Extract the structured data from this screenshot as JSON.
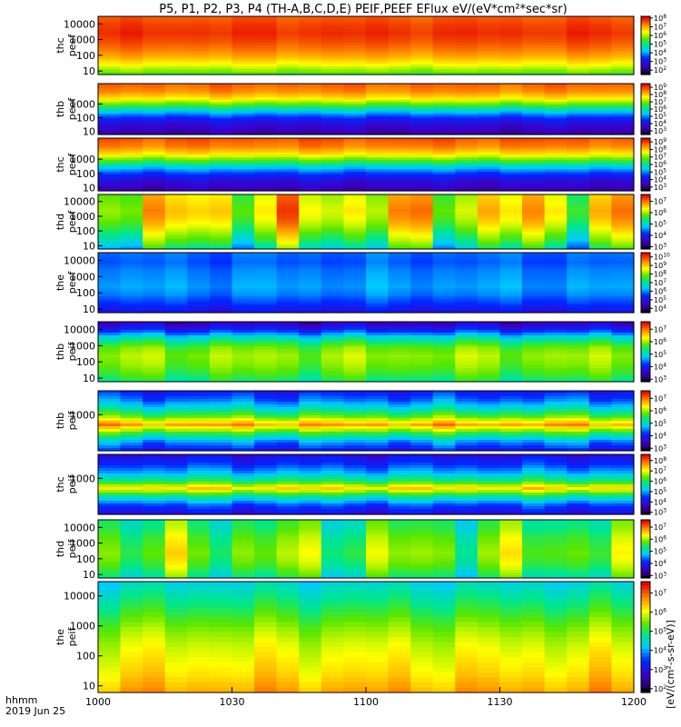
{
  "title": "P5, P1, P2, P3, P4 (TH-A,B,C,D,E) PEIF,PEEF EFlux eV/(eV*cm²*sec*sr)",
  "colorbar_label": "[eV/(cm²-s-sr-eV)]",
  "footer": {
    "time_label": "hhmm",
    "date_label": "2019 Jun 25"
  },
  "x_tick_labels": [
    "1000",
    "1030",
    "1100",
    "1130",
    "1200"
  ],
  "chart_data": {
    "type": "heatmap",
    "title": "P5, P1, P2, P3, P4 (TH-A,B,C,D,E) PEIF,PEEF EFlux eV/(eV*cm²*sec*sr)",
    "x_range": [
      "10:00",
      "12:00"
    ],
    "x_ticks": [
      "1000",
      "1030",
      "1100",
      "1130",
      "1200"
    ],
    "y_scale": "log",
    "colorbar_scale": "log",
    "panels": [
      {
        "probe": "thc",
        "product": "peef",
        "ylabel": "thc peef",
        "y_ticks": [
          "10",
          "100",
          "1000",
          "10000"
        ],
        "cb_exponents": [
          2,
          3,
          4,
          5,
          6,
          7,
          8
        ],
        "cb_min": 1.5,
        "cb_max": 8.2,
        "profile": [
          7.6,
          7.8,
          7.9,
          7.7,
          7.4,
          7.0,
          6.4,
          5.6
        ],
        "amp": 0.15
      },
      {
        "probe": "thb",
        "product": "peef",
        "ylabel": "thb peef",
        "y_ticks": [
          "10",
          "100",
          "1000"
        ],
        "cb_exponents": [
          3,
          4,
          5,
          6,
          7,
          8,
          9
        ],
        "cb_min": 2.5,
        "cb_max": 9.5,
        "profile": [
          8.8,
          8.5,
          7.8,
          6.6,
          5.2,
          4.2,
          3.6,
          3.2
        ],
        "amp": 0.2
      },
      {
        "probe": "thc",
        "product": "peef",
        "ylabel": "thc peef",
        "y_ticks": [
          "10",
          "100",
          "1000"
        ],
        "cb_exponents": [
          3,
          4,
          5,
          6,
          7,
          8,
          9
        ],
        "cb_min": 2.5,
        "cb_max": 9.5,
        "profile": [
          8.9,
          8.6,
          7.9,
          6.7,
          5.3,
          4.3,
          3.7,
          3.3
        ],
        "amp": 0.2
      },
      {
        "probe": "thd",
        "product": "peef",
        "ylabel": "thd peef",
        "y_ticks": [
          "10",
          "100",
          "1000",
          "10000"
        ],
        "cb_exponents": [
          3,
          4,
          5,
          6,
          7
        ],
        "cb_min": 2.8,
        "cb_max": 7.6,
        "profile": [
          6.3,
          6.4,
          6.5,
          6.4,
          6.2,
          5.9,
          5.6,
          5.2
        ],
        "amp": 0.9
      },
      {
        "probe": "the",
        "product": "peef",
        "ylabel": "the peef",
        "y_ticks": [
          "10",
          "100",
          "1000",
          "10000"
        ],
        "cb_exponents": [
          4,
          5,
          6,
          7,
          8,
          9,
          10
        ],
        "cb_min": 3.5,
        "cb_max": 10.5,
        "profile": [
          5.8,
          5.7,
          5.9,
          6.0,
          6.1,
          5.9,
          5.5,
          5.0
        ],
        "amp": 0.25
      },
      {
        "probe": "thb",
        "product": "peif",
        "ylabel": "thb peif",
        "y_ticks": [
          "10",
          "100",
          "1000",
          "10000"
        ],
        "cb_exponents": [
          3,
          4,
          5,
          6,
          7
        ],
        "cb_min": 2.8,
        "cb_max": 7.6,
        "profile": [
          3.4,
          4.2,
          5.2,
          5.8,
          6.0,
          5.9,
          5.7,
          5.4
        ],
        "amp": 0.3
      },
      {
        "probe": "thb",
        "product": "peif",
        "ylabel": "thb peif",
        "y_ticks": [
          "1000"
        ],
        "cb_exponents": [
          3,
          4,
          5,
          6,
          7
        ],
        "cb_min": 2.8,
        "cb_max": 7.6,
        "profile": [
          4.0,
          4.4,
          5.0,
          5.8,
          6.8,
          5.6,
          4.6,
          4.0
        ],
        "amp": 0.3
      },
      {
        "probe": "thc",
        "product": "peif",
        "ylabel": "thc peif",
        "y_ticks": [
          "1000"
        ],
        "cb_exponents": [
          3,
          4,
          5,
          6,
          7,
          8
        ],
        "cb_min": 2.8,
        "cb_max": 8.6,
        "profile": [
          4.0,
          4.4,
          5.0,
          5.9,
          7.3,
          5.7,
          4.6,
          4.0
        ],
        "amp": 0.3
      },
      {
        "probe": "thd",
        "product": "peif",
        "ylabel": "thd peif",
        "y_ticks": [
          "10",
          "100",
          "1000",
          "10000"
        ],
        "cb_exponents": [
          3,
          4,
          5,
          6,
          7
        ],
        "cb_min": 2.8,
        "cb_max": 7.6,
        "profile": [
          5.4,
          5.5,
          5.7,
          5.8,
          5.9,
          5.8,
          5.6,
          5.3
        ],
        "amp": 0.7
      },
      {
        "probe": "the",
        "product": "peif",
        "ylabel": "the peif",
        "y_ticks": [
          "10",
          "100",
          "1000",
          "10000"
        ],
        "cb_exponents": [
          2,
          3,
          4,
          5,
          6,
          7
        ],
        "cb_min": 1.8,
        "cb_max": 7.6,
        "profile": [
          4.4,
          4.8,
          5.2,
          5.6,
          5.9,
          6.1,
          6.3,
          6.6
        ],
        "amp": 0.3
      }
    ]
  }
}
